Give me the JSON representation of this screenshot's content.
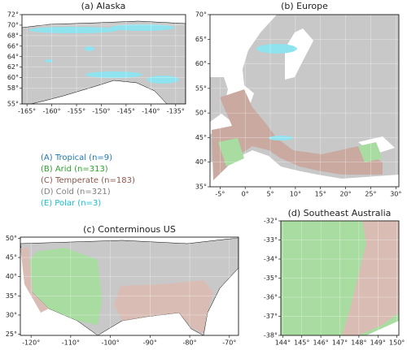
{
  "panels": [
    {
      "title": "(a) Alaska",
      "xlim": [
        -166,
        -133
      ],
      "ylim": [
        55,
        72
      ],
      "xticks": [
        {
          "value": -165,
          "label": "-165°"
        },
        {
          "value": -160,
          "label": "-160°"
        },
        {
          "value": -155,
          "label": "-155°"
        },
        {
          "value": -150,
          "label": "-150°"
        },
        {
          "value": -145,
          "label": "-145°"
        },
        {
          "value": -140,
          "label": "-140°"
        },
        {
          "value": -135,
          "label": "-135°"
        }
      ],
      "yticks": [
        {
          "value": 55,
          "label": "55°"
        },
        {
          "value": 58,
          "label": "58°"
        },
        {
          "value": 60,
          "label": "60°"
        },
        {
          "value": 62,
          "label": "62°"
        },
        {
          "value": 64,
          "label": "64°"
        },
        {
          "value": 66,
          "label": "66°"
        },
        {
          "value": 68,
          "label": "68°"
        },
        {
          "value": 70,
          "label": "70°"
        },
        {
          "value": 72,
          "label": "72°"
        }
      ]
    },
    {
      "title": "(b) Europe",
      "xlim": [
        -7,
        30.6
      ],
      "ylim": [
        35,
        70
      ],
      "xticks": [
        {
          "value": -5,
          "label": "-5°"
        },
        {
          "value": 0,
          "label": "0°"
        },
        {
          "value": 5,
          "label": "5°"
        },
        {
          "value": 10,
          "label": "10°"
        },
        {
          "value": 15,
          "label": "15°"
        },
        {
          "value": 20,
          "label": "20°"
        },
        {
          "value": 25,
          "label": "25°"
        },
        {
          "value": 30,
          "label": "30°"
        }
      ],
      "yticks": [
        {
          "value": 35,
          "label": "35°"
        },
        {
          "value": 40,
          "label": "40°"
        },
        {
          "value": 45,
          "label": "45°"
        },
        {
          "value": 50,
          "label": "50°"
        },
        {
          "value": 55,
          "label": "55°"
        },
        {
          "value": 60,
          "label": "60°"
        },
        {
          "value": 65,
          "label": "65°"
        },
        {
          "value": 70,
          "label": "70°"
        }
      ]
    },
    {
      "title": "(c) Conterminous US",
      "xlim": [
        -122.7,
        -67.7
      ],
      "ylim": [
        24.7,
        50.3
      ],
      "xticks": [
        {
          "value": -120,
          "label": "-120°"
        },
        {
          "value": -110,
          "label": "-110°"
        },
        {
          "value": -100,
          "label": "-100°"
        },
        {
          "value": -90,
          "label": "-90°"
        },
        {
          "value": -80,
          "label": "-80°"
        },
        {
          "value": -70,
          "label": "-70°"
        }
      ],
      "yticks": [
        {
          "value": 25,
          "label": "25°"
        },
        {
          "value": 30,
          "label": "30°"
        },
        {
          "value": 35,
          "label": "35°"
        },
        {
          "value": 40,
          "label": "40°"
        },
        {
          "value": 45,
          "label": "45°"
        },
        {
          "value": 50,
          "label": "50°"
        }
      ]
    },
    {
      "title": "(d) Southeast Australia",
      "xlim": [
        143.9,
        150.1
      ],
      "ylim": [
        -38,
        -32
      ],
      "xticks": [
        {
          "value": 144,
          "label": "144°"
        },
        {
          "value": 145,
          "label": "145°"
        },
        {
          "value": 146,
          "label": "146°"
        },
        {
          "value": 147,
          "label": "147°"
        },
        {
          "value": 148,
          "label": "148°"
        },
        {
          "value": 149,
          "label": "149°"
        },
        {
          "value": 150,
          "label": "150°"
        }
      ],
      "yticks": [
        {
          "value": -38,
          "label": "-38°"
        },
        {
          "value": -37,
          "label": "-37°"
        },
        {
          "value": -36,
          "label": "-36°"
        },
        {
          "value": -35,
          "label": "-35°"
        },
        {
          "value": -34,
          "label": "-34°"
        },
        {
          "value": -33,
          "label": "-33°"
        },
        {
          "value": -32,
          "label": "-32°"
        }
      ]
    }
  ],
  "legend": [
    {
      "label": "(A) Tropical (n=9)",
      "color": "#1f77b4"
    },
    {
      "label": "(B) Arid (n=313)",
      "color": "#2ca02c"
    },
    {
      "label": "(C) Temperate (n=183)",
      "color": "#8c564b"
    },
    {
      "label": "(D) Cold (n=321)",
      "color": "#7f7f7f"
    },
    {
      "label": "(E) Polar (n=3)",
      "color": "#17becf"
    }
  ]
}
